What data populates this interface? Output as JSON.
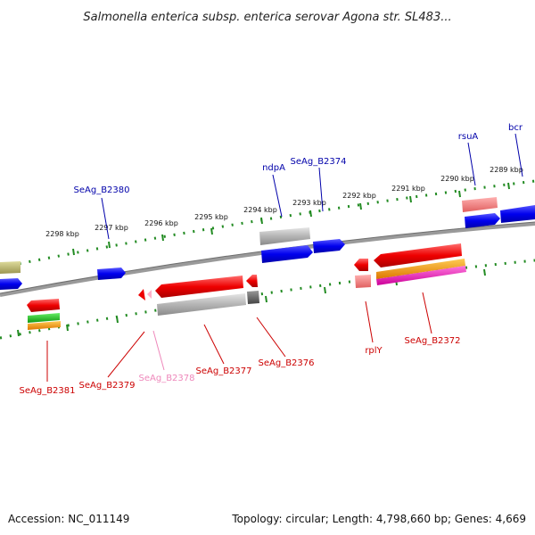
{
  "title": "Salmonella enterica subsp. enterica serovar Agona str. SL483...",
  "footer": {
    "accession": "Accession: NC_011149",
    "summary": "Topology: circular; Length: 4,798,660 bp; Genes: 4,669"
  },
  "colors": {
    "forward_label": "#0000aa",
    "reverse_label": "#cc0000",
    "pseudo_label": "#ee88bb",
    "tick": "#228b22",
    "backbone": "#888888"
  },
  "kbp_labels": [
    "2298 kbp",
    "2297 kbp",
    "2296 kbp",
    "2295 kbp",
    "2294 kbp",
    "2293 kbp",
    "2292 kbp",
    "2291 kbp",
    "2290 kbp",
    "2289 kbp"
  ],
  "gene_labels": {
    "SeAg_B2380": "SeAg_B2380",
    "ndpA": "ndpA",
    "SeAg_B2374": "SeAg_B2374",
    "rsuA": "rsuA",
    "bcr": "bcr",
    "SeAg_B2381": "SeAg_B2381",
    "SeAg_B2379": "SeAg_B2379",
    "SeAg_B2378": "SeAg_B2378",
    "SeAg_B2377": "SeAg_B2377",
    "SeAg_B2376": "SeAg_B2376",
    "rplY": "rplY",
    "SeAg_B2372": "SeAg_B2372"
  }
}
